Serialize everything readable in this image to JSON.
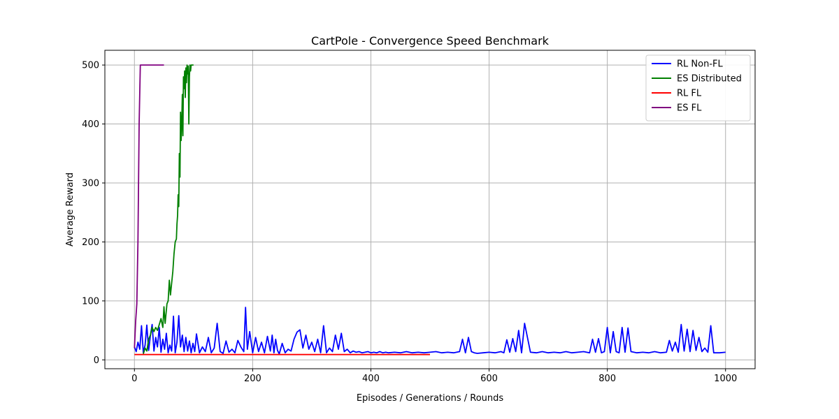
{
  "chart_data": {
    "type": "line",
    "title": "CartPole - Convergence Speed Benchmark",
    "xlabel": "Episodes / Generations / Rounds",
    "ylabel": "Average Reward",
    "xlim": [
      -50,
      1050
    ],
    "ylim": [
      -15,
      525
    ],
    "x_ticks": [
      0,
      200,
      400,
      600,
      800,
      1000
    ],
    "y_ticks": [
      0,
      100,
      200,
      300,
      400,
      500
    ],
    "grid": true,
    "legend_position": "top-right",
    "series": [
      {
        "name": "RL Non-FL",
        "color": "#0000ff",
        "x": [
          0,
          3,
          6,
          9,
          12,
          15,
          18,
          21,
          24,
          27,
          30,
          33,
          36,
          39,
          42,
          45,
          48,
          51,
          54,
          57,
          60,
          63,
          66,
          69,
          72,
          75,
          78,
          81,
          84,
          87,
          90,
          93,
          96,
          99,
          102,
          105,
          110,
          115,
          120,
          125,
          130,
          135,
          140,
          145,
          150,
          155,
          160,
          165,
          170,
          175,
          180,
          185,
          188,
          191,
          195,
          200,
          205,
          210,
          215,
          220,
          225,
          230,
          233,
          236,
          239,
          242,
          245,
          250,
          255,
          260,
          265,
          270,
          275,
          280,
          285,
          290,
          295,
          300,
          305,
          310,
          315,
          320,
          325,
          330,
          335,
          340,
          345,
          350,
          355,
          360,
          365,
          370,
          375,
          380,
          385,
          390,
          395,
          400,
          405,
          410,
          415,
          420,
          425,
          430,
          440,
          450,
          460,
          470,
          480,
          490,
          500,
          510,
          520,
          530,
          540,
          550,
          555,
          560,
          565,
          570,
          575,
          580,
          590,
          600,
          610,
          620,
          625,
          630,
          635,
          640,
          645,
          650,
          655,
          660,
          670,
          680,
          690,
          700,
          710,
          720,
          730,
          740,
          750,
          760,
          770,
          775,
          780,
          785,
          790,
          795,
          800,
          805,
          810,
          815,
          820,
          825,
          830,
          835,
          840,
          850,
          860,
          870,
          880,
          890,
          900,
          905,
          910,
          915,
          920,
          925,
          930,
          935,
          940,
          945,
          950,
          955,
          960,
          965,
          970,
          975,
          980,
          990,
          1000
        ],
        "values": [
          22,
          14,
          30,
          18,
          58,
          12,
          25,
          59,
          16,
          41,
          60,
          15,
          38,
          22,
          55,
          13,
          35,
          18,
          45,
          12,
          25,
          15,
          74,
          12,
          30,
          75,
          22,
          42,
          14,
          38,
          15,
          32,
          12,
          28,
          14,
          44,
          12,
          22,
          14,
          38,
          12,
          20,
          62,
          14,
          11,
          32,
          13,
          18,
          12,
          33,
          22,
          14,
          89,
          18,
          48,
          12,
          38,
          14,
          30,
          12,
          40,
          15,
          42,
          12,
          35,
          16,
          10,
          28,
          12,
          18,
          15,
          35,
          47,
          51,
          20,
          42,
          18,
          30,
          14,
          35,
          12,
          58,
          12,
          20,
          14,
          42,
          18,
          45,
          14,
          18,
          12,
          15,
          13,
          14,
          12,
          13,
          14,
          12,
          13,
          12,
          14,
          12,
          13,
          12,
          13,
          12,
          14,
          12,
          13,
          12,
          13,
          14,
          12,
          13,
          12,
          14,
          35,
          12,
          38,
          14,
          12,
          11,
          12,
          13,
          12,
          14,
          12,
          34,
          13,
          36,
          14,
          50,
          12,
          62,
          13,
          12,
          14,
          12,
          13,
          12,
          14,
          12,
          13,
          14,
          12,
          35,
          13,
          36,
          12,
          14,
          55,
          12,
          48,
          14,
          12,
          55,
          13,
          54,
          14,
          12,
          13,
          12,
          14,
          12,
          13,
          33,
          15,
          30,
          13,
          60,
          15,
          52,
          14,
          50,
          16,
          38,
          14,
          20,
          13,
          58,
          12,
          12,
          13
        ]
      },
      {
        "name": "ES Distributed",
        "color": "#008000",
        "x": [
          15,
          18,
          21,
          24,
          27,
          30,
          33,
          36,
          39,
          42,
          45,
          48,
          50,
          52,
          55,
          57,
          59,
          61,
          63,
          65,
          67,
          69,
          71,
          72,
          73,
          74,
          75,
          76,
          77,
          78,
          79,
          80,
          81,
          82,
          83,
          84,
          85,
          86,
          87,
          88,
          89,
          90,
          91,
          92,
          93,
          94,
          95,
          96,
          97,
          98,
          99,
          100
        ],
        "values": [
          10,
          20,
          15,
          35,
          42,
          55,
          48,
          55,
          50,
          60,
          70,
          55,
          90,
          62,
          95,
          100,
          135,
          110,
          130,
          150,
          180,
          200,
          205,
          230,
          245,
          280,
          260,
          350,
          310,
          420,
          372,
          400,
          450,
          380,
          480,
          460,
          490,
          445,
          495,
          470,
          500,
          485,
          498,
          400,
          480,
          500,
          490,
          500,
          500,
          500,
          500,
          500
        ]
      },
      {
        "name": "RL FL",
        "color": "#ff0000",
        "x": [
          0,
          25,
          50,
          75,
          100,
          125,
          150,
          175,
          200,
          225,
          250,
          275,
          300,
          325,
          350,
          375,
          400,
          425,
          450,
          475,
          500
        ],
        "values": [
          9,
          9,
          9,
          9,
          9,
          9,
          9,
          9,
          9,
          9,
          9,
          9,
          9,
          9,
          9,
          9,
          9,
          9,
          9,
          9,
          9
        ]
      },
      {
        "name": "ES FL",
        "color": "#800080",
        "x": [
          0,
          2,
          4,
          6,
          8,
          10,
          15,
          20,
          25,
          30,
          35,
          40,
          45,
          50
        ],
        "values": [
          20,
          65,
          95,
          200,
          400,
          500,
          500,
          500,
          500,
          500,
          500,
          500,
          500,
          500
        ]
      }
    ]
  }
}
